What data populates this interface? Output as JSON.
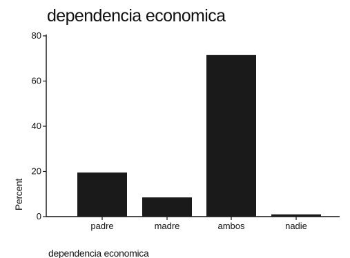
{
  "chart_data": {
    "type": "bar",
    "title": "dependencia economica",
    "xlabel": "dependencia economica",
    "ylabel": "Percent",
    "categories": [
      "padre",
      "madre",
      "ambos",
      "nadie"
    ],
    "values": [
      19.5,
      8.5,
      71.5,
      1
    ],
    "ylim": [
      0,
      80
    ],
    "yticks": [
      0,
      20,
      40,
      60,
      80
    ],
    "grid": false,
    "bar_color": "#1a1a1a"
  }
}
